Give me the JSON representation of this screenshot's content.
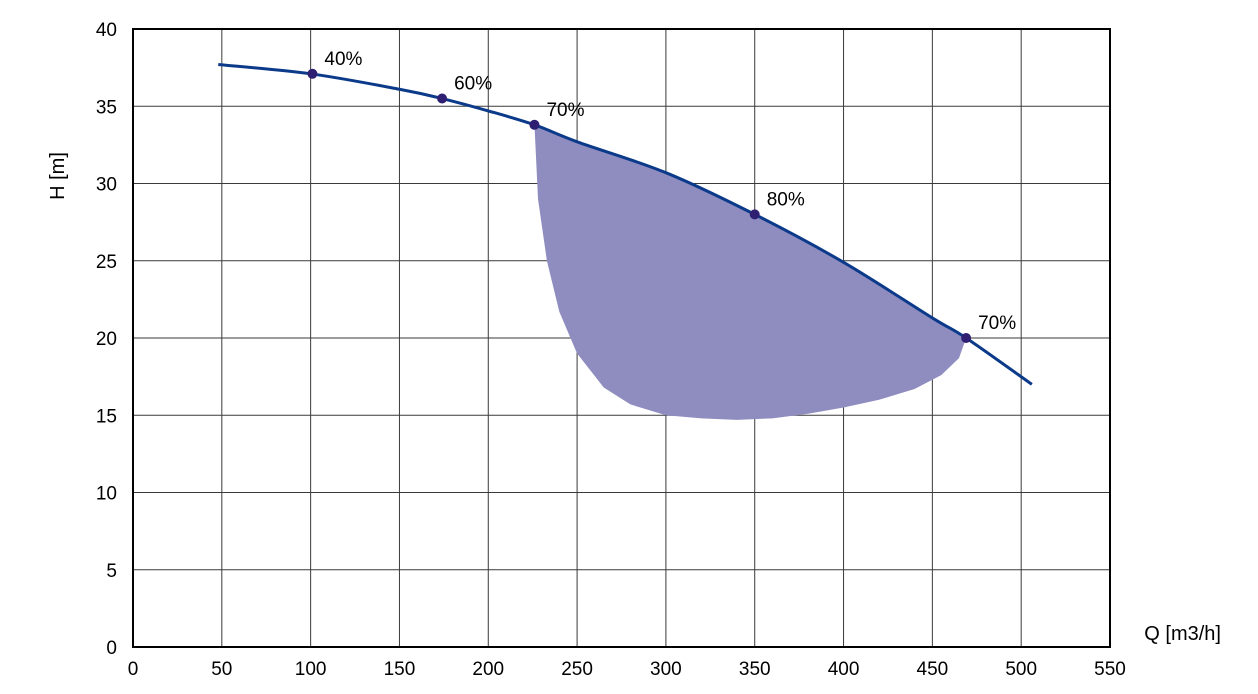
{
  "chart_data": {
    "type": "line",
    "title": "",
    "xlabel": "Q [m3/h]",
    "ylabel": "H [m]",
    "xlim": [
      0,
      550
    ],
    "ylim": [
      0,
      40
    ],
    "x_ticks": [
      "0",
      "50",
      "100",
      "150",
      "200",
      "250",
      "300",
      "350",
      "400",
      "450",
      "500",
      "550"
    ],
    "y_ticks": [
      "0",
      "5",
      "10",
      "15",
      "20",
      "25",
      "30",
      "35",
      "40"
    ],
    "grid": true,
    "series": [
      {
        "type": "line",
        "color": "#0b3a8a",
        "x": [
          48,
          100,
          150,
          174,
          200,
          226,
          250,
          300,
          350,
          400,
          450,
          469,
          506
        ],
        "y": [
          37.7,
          37.1,
          36.1,
          35.5,
          34.7,
          33.8,
          32.7,
          30.7,
          28.0,
          24.9,
          21.3,
          20.0,
          17.0
        ]
      },
      {
        "type": "area",
        "color": "#8f8cc0",
        "x": [
          226,
          228,
          233,
          240,
          250,
          265,
          280,
          300,
          320,
          340,
          360,
          380,
          400,
          420,
          440,
          455,
          465,
          469,
          450,
          400,
          350,
          300,
          250,
          226
        ],
        "y": [
          33.8,
          29.0,
          25.0,
          21.7,
          19.0,
          16.8,
          15.7,
          15.0,
          14.8,
          14.7,
          14.8,
          15.1,
          15.5,
          16.0,
          16.7,
          17.6,
          18.7,
          20.0,
          21.3,
          24.9,
          28.0,
          30.7,
          32.7,
          33.8
        ]
      }
    ],
    "points": [
      {
        "x": 101,
        "y": 37.1,
        "label": "40%"
      },
      {
        "x": 174,
        "y": 35.5,
        "label": "60%"
      },
      {
        "x": 226,
        "y": 33.8,
        "label": "70%"
      },
      {
        "x": 350,
        "y": 28.0,
        "label": "80%"
      },
      {
        "x": 469,
        "y": 20.0,
        "label": "70%"
      }
    ],
    "point_color": "#2e1f73"
  }
}
